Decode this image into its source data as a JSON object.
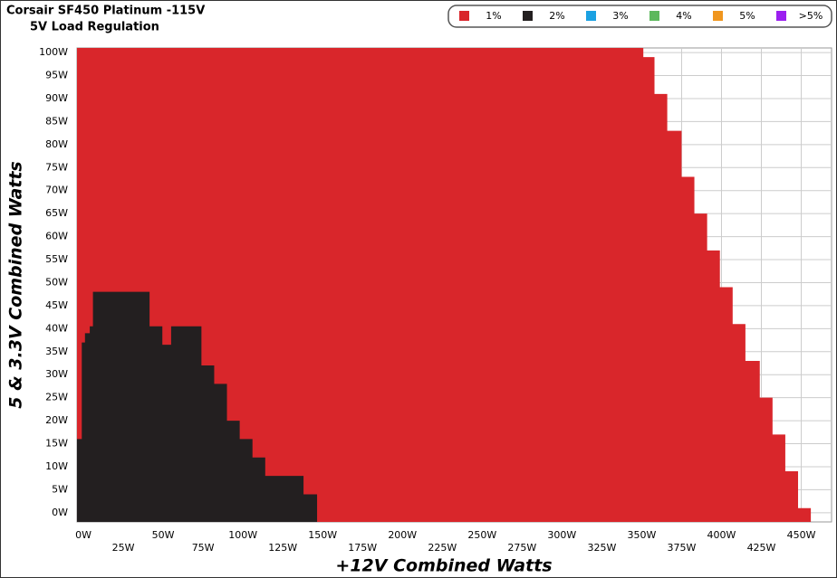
{
  "chart_data": {
    "type": "area",
    "title": "Corsair SF450 Platinum -115V",
    "subtitle": "5V Load Regulation",
    "x_label": "+12V Combined Watts",
    "y_label": "5 & 3.3V Combined Watts",
    "xlim": [
      -4,
      469
    ],
    "ylim": [
      -2,
      101
    ],
    "xticks": [
      {
        "value": 0,
        "label": "0W"
      },
      {
        "value": 25,
        "label": "25W"
      },
      {
        "value": 50,
        "label": "50W"
      },
      {
        "value": 75,
        "label": "75W"
      },
      {
        "value": 100,
        "label": "100W"
      },
      {
        "value": 125,
        "label": "125W"
      },
      {
        "value": 150,
        "label": "150W"
      },
      {
        "value": 175,
        "label": "175W"
      },
      {
        "value": 200,
        "label": "200W"
      },
      {
        "value": 225,
        "label": "225W"
      },
      {
        "value": 250,
        "label": "250W"
      },
      {
        "value": 275,
        "label": "275W"
      },
      {
        "value": 300,
        "label": "300W"
      },
      {
        "value": 325,
        "label": "325W"
      },
      {
        "value": 350,
        "label": "350W"
      },
      {
        "value": 375,
        "label": "375W"
      },
      {
        "value": 400,
        "label": "400W"
      },
      {
        "value": 425,
        "label": "425W"
      },
      {
        "value": 450,
        "label": "450W"
      }
    ],
    "yticks": [
      {
        "value": 0,
        "label": "0W"
      },
      {
        "value": 5,
        "label": "5W"
      },
      {
        "value": 10,
        "label": "10W"
      },
      {
        "value": 15,
        "label": "15W"
      },
      {
        "value": 20,
        "label": "20W"
      },
      {
        "value": 25,
        "label": "25W"
      },
      {
        "value": 30,
        "label": "30W"
      },
      {
        "value": 35,
        "label": "35W"
      },
      {
        "value": 40,
        "label": "40W"
      },
      {
        "value": 45,
        "label": "45W"
      },
      {
        "value": 50,
        "label": "50W"
      },
      {
        "value": 55,
        "label": "55W"
      },
      {
        "value": 60,
        "label": "60W"
      },
      {
        "value": 65,
        "label": "65W"
      },
      {
        "value": 70,
        "label": "70W"
      },
      {
        "value": 75,
        "label": "75W"
      },
      {
        "value": 80,
        "label": "80W"
      },
      {
        "value": 85,
        "label": "85W"
      },
      {
        "value": 90,
        "label": "90W"
      },
      {
        "value": 95,
        "label": "95W"
      },
      {
        "value": 100,
        "label": "100W"
      }
    ],
    "grid": true,
    "legend": "top-right",
    "series": [
      {
        "name": "1%",
        "color": "#d9262b",
        "x": [
          -4,
          351,
          351,
          358,
          358,
          366,
          366,
          375,
          375,
          383,
          383,
          391,
          391,
          399,
          399,
          407,
          407,
          415,
          415,
          424,
          424,
          432,
          432,
          440,
          440,
          448,
          448,
          456
        ],
        "values": [
          101,
          101,
          99,
          99,
          91,
          91,
          83,
          83,
          73,
          73,
          65,
          65,
          57,
          57,
          49,
          49,
          41,
          41,
          33,
          33,
          25,
          25,
          17,
          17,
          9,
          9,
          1,
          1
        ]
      },
      {
        "name": "2%",
        "color": "#231f20",
        "x": [
          -4,
          -1,
          -1,
          1,
          1,
          4,
          4,
          6,
          6,
          41.5,
          41.5,
          49.5,
          49.5,
          55,
          55,
          74,
          74,
          82,
          82,
          90,
          90,
          98,
          98,
          106,
          106,
          114,
          114,
          138,
          138,
          146.5
        ],
        "values": [
          16,
          16,
          37,
          37,
          39,
          39,
          40.5,
          40.5,
          48,
          48,
          40.5,
          40.5,
          36.5,
          36.5,
          40.5,
          40.5,
          32,
          32,
          28,
          28,
          20,
          20,
          16,
          16,
          12,
          12,
          8,
          8,
          4,
          4
        ]
      },
      {
        "name": "3%",
        "color": "#1ba1e2",
        "x": [],
        "values": []
      },
      {
        "name": "4%",
        "color": "#5cb85c",
        "x": [],
        "values": []
      },
      {
        "name": "5%",
        "color": "#f0961e",
        "x": [],
        "values": []
      },
      {
        "name": ">5%",
        "color": "#9b1ff0",
        "x": [],
        "values": []
      }
    ]
  }
}
